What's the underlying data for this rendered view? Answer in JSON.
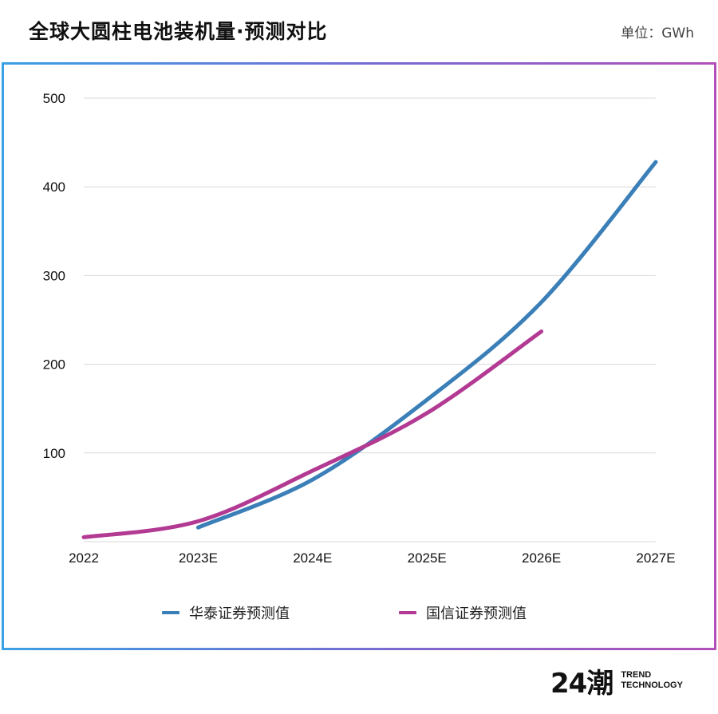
{
  "header": {
    "title": "全球大圆柱电池装机量·预测对比",
    "unit": "单位：GWh"
  },
  "brand": {
    "mark": "24潮",
    "line1": "TREND",
    "line2": "TECHNOLOGY"
  },
  "chart_data": {
    "type": "line",
    "title": "全球大圆柱电池装机量·预测对比",
    "xlabel": "",
    "ylabel": "",
    "categories": [
      "2022",
      "2023E",
      "2024E",
      "2025E",
      "2026E",
      "2027E"
    ],
    "ylim": [
      0,
      520
    ],
    "yticks": [
      100,
      200,
      300,
      400,
      500
    ],
    "grid": true,
    "legend_position": "bottom",
    "series": [
      {
        "name": "华泰证券预测值",
        "color": "#3b7fb8",
        "x": [
          1,
          2,
          3,
          4,
          5
        ],
        "values": [
          16,
          70,
          160,
          270,
          428
        ]
      },
      {
        "name": "国信证券预测值",
        "color": "#b33a93",
        "x": [
          0,
          1,
          2,
          3,
          4
        ],
        "values": [
          5,
          23,
          80,
          145,
          237
        ]
      }
    ]
  }
}
